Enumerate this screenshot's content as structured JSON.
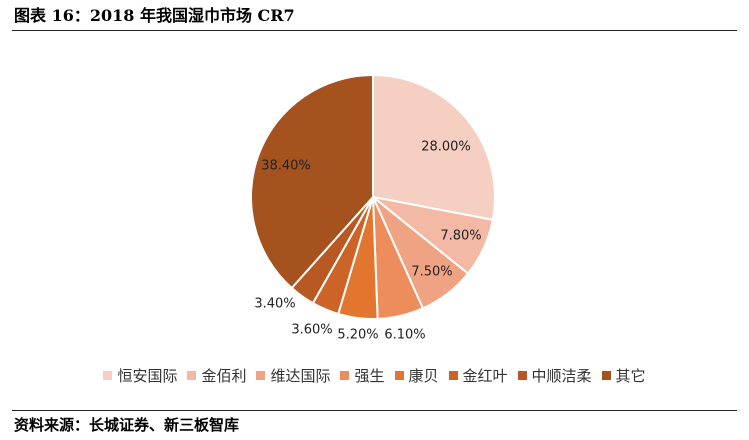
{
  "title": "图表 16：2018 年我国湿巾市场 CR7",
  "source": "资料来源：长城证券、新三板智库",
  "chart_data": {
    "type": "pie",
    "labels": [
      "恒安国际",
      "金佰利",
      "维达国际",
      "强生",
      "康贝",
      "金红叶",
      "中顺洁柔",
      "其它"
    ],
    "values": [
      28.0,
      7.8,
      7.5,
      6.1,
      5.2,
      3.6,
      3.4,
      38.4
    ],
    "data_labels": [
      "28.00%",
      "7.80%",
      "7.50%",
      "6.10%",
      "5.20%",
      "3.60%",
      "3.40%",
      "38.40%"
    ],
    "colors": [
      "#F5CFC2",
      "#F3B9A4",
      "#EFA383",
      "#EE8D5C",
      "#E3762F",
      "#CD6326",
      "#B85822",
      "#A5521F"
    ],
    "legend_position": "bottom"
  }
}
